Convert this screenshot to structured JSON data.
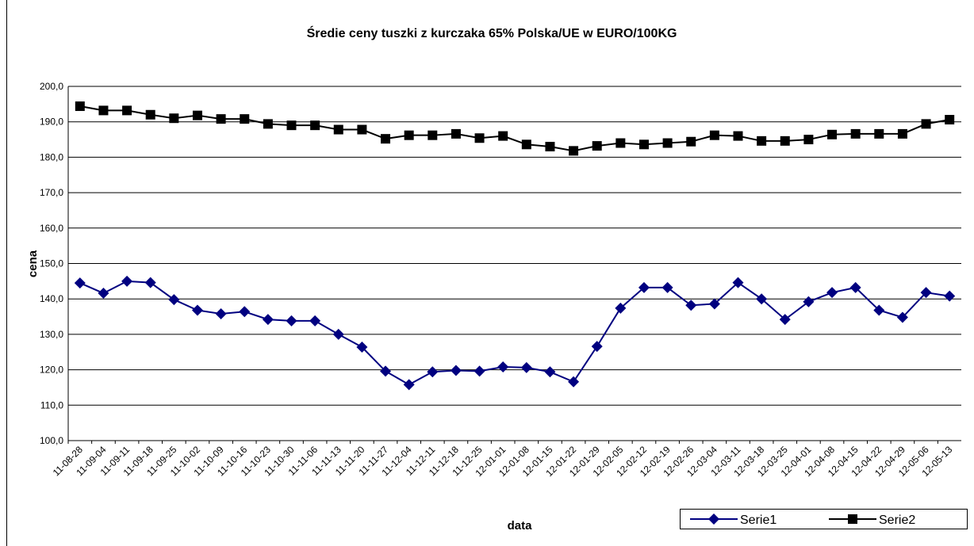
{
  "chart_data": {
    "type": "line",
    "title": "Średie ceny tuszki z kurczaka 65% Polska/UE w EURO/100KG",
    "x_label": "data",
    "y_label": "cena",
    "categories": [
      "11-08-28",
      "11-09-04",
      "11-09-11",
      "11-09-18",
      "11-09-25",
      "11-10-02",
      "11-10-09",
      "11-10-16",
      "11-10-23",
      "11-10-30",
      "11-11-06",
      "11-11-13",
      "11-11-20",
      "11-11-27",
      "11-12-04",
      "11-12-11",
      "11-12-18",
      "11-12-25",
      "12-01-01",
      "12-01-08",
      "12-01-15",
      "12-01-22",
      "12-01-29",
      "12-02-05",
      "12-02-12",
      "12-02-19",
      "12-02-26",
      "12-03-04",
      "12-03-11",
      "12-03-18",
      "12-03-25",
      "12-04-01",
      "12-04-08",
      "12-04-15",
      "12-04-22",
      "12-04-29",
      "12-05-06",
      "12-05-13"
    ],
    "series": [
      {
        "name": "Serie1",
        "color": "#000080",
        "marker": "diamond",
        "values": [
          144.5,
          141.6,
          145,
          144.6,
          139.8,
          136.8,
          135.8,
          136.4,
          134.2,
          133.8,
          133.8,
          130,
          126.4,
          119.6,
          115.8,
          119.4,
          119.8,
          119.6,
          120.8,
          120.6,
          119.4,
          116.6,
          126.6,
          137.4,
          143.2,
          143.2,
          138.2,
          138.6,
          144.6,
          140,
          134.2,
          139.2,
          141.8,
          143.2,
          136.8,
          134.8,
          141.8,
          140.8
        ]
      },
      {
        "name": "Serie2",
        "color": "#000000",
        "marker": "square",
        "values": [
          194.4,
          193.2,
          193.2,
          192,
          191,
          191.8,
          190.8,
          190.8,
          189.4,
          189,
          189,
          187.8,
          187.8,
          185.2,
          186.2,
          186.2,
          186.6,
          185.4,
          186,
          183.6,
          183,
          181.8,
          183.2,
          184,
          183.6,
          184,
          184.4,
          186.2,
          186,
          184.6,
          184.6,
          185,
          186.4,
          186.6,
          186.6,
          186.6,
          189.4,
          190.6
        ]
      }
    ],
    "ylim": [
      100,
      200
    ],
    "yticks": [
      {
        "value": 100,
        "label": "100,0"
      },
      {
        "value": 110,
        "label": "110,0"
      },
      {
        "value": 120,
        "label": "120,0"
      },
      {
        "value": 130,
        "label": "130,0"
      },
      {
        "value": 140,
        "label": "140,0"
      },
      {
        "value": 150,
        "label": "150,0"
      },
      {
        "value": 160,
        "label": "160,0"
      },
      {
        "value": 170,
        "label": "170,0"
      },
      {
        "value": 180,
        "label": "180,0"
      },
      {
        "value": 190,
        "label": "190,0"
      },
      {
        "value": 200,
        "label": "200,0"
      }
    ],
    "grid": true,
    "legend": "bottom-right"
  }
}
